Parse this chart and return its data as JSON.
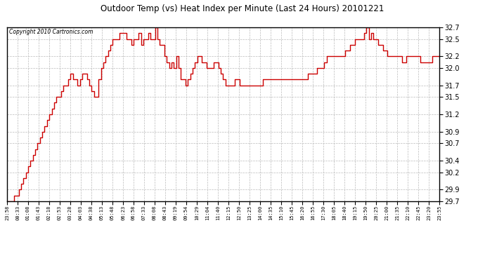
{
  "title": "Outdoor Temp (vs) Heat Index per Minute (Last 24 Hours) 20101221",
  "copyright": "Copyright 2010 Cartronics.com",
  "line_color": "#cc0000",
  "background_color": "#ffffff",
  "plot_bg_color": "#ffffff",
  "grid_color": "#bbbbbb",
  "ylim": [
    29.7,
    32.7
  ],
  "yticks": [
    29.7,
    29.9,
    30.2,
    30.4,
    30.7,
    30.9,
    31.2,
    31.5,
    31.7,
    32.0,
    32.2,
    32.5,
    32.7
  ],
  "xtick_labels": [
    "23:58",
    "00:33",
    "01:08",
    "01:43",
    "02:18",
    "02:53",
    "03:28",
    "04:03",
    "04:38",
    "05:13",
    "05:48",
    "06:23",
    "06:58",
    "07:33",
    "08:08",
    "08:43",
    "09:19",
    "09:54",
    "10:29",
    "11:04",
    "11:40",
    "12:15",
    "12:50",
    "13:25",
    "14:00",
    "14:35",
    "15:10",
    "15:45",
    "16:20",
    "16:55",
    "17:30",
    "18:05",
    "18:40",
    "19:15",
    "19:50",
    "20:25",
    "21:00",
    "21:35",
    "22:10",
    "22:45",
    "23:20",
    "23:55"
  ],
  "data_y": [
    29.7,
    29.7,
    29.7,
    29.8,
    29.8,
    29.9,
    30.0,
    30.1,
    30.2,
    30.3,
    30.4,
    30.5,
    30.6,
    30.7,
    30.8,
    30.9,
    31.0,
    31.1,
    31.2,
    31.3,
    31.4,
    31.5,
    31.5,
    31.6,
    31.7,
    31.7,
    31.8,
    31.9,
    31.8,
    31.8,
    31.7,
    31.8,
    31.9,
    31.9,
    31.8,
    31.7,
    31.6,
    31.5,
    31.5,
    31.8,
    32.0,
    32.1,
    32.2,
    32.3,
    32.4,
    32.5,
    32.5,
    32.5,
    32.6,
    32.6,
    32.6,
    32.5,
    32.5,
    32.4,
    32.5,
    32.5,
    32.6,
    32.4,
    32.5,
    32.5,
    32.6,
    32.5,
    32.5,
    32.7,
    32.5,
    32.4,
    32.4,
    32.2,
    32.1,
    32.0,
    32.1,
    32.0,
    32.2,
    32.0,
    31.8,
    31.8,
    31.7,
    31.8,
    31.9,
    32.0,
    32.1,
    32.2,
    32.2,
    32.1,
    32.1,
    32.0,
    32.0,
    32.0,
    32.1,
    32.1,
    32.0,
    31.9,
    31.8,
    31.7,
    31.7,
    31.7,
    31.7,
    31.8,
    31.8,
    31.7,
    31.7,
    31.7,
    31.7,
    31.7,
    31.7,
    31.7,
    31.7,
    31.7,
    31.7,
    31.8,
    31.8,
    31.8,
    31.8,
    31.8,
    31.8,
    31.8,
    31.8,
    31.8,
    31.8,
    31.8,
    31.8,
    31.8,
    31.8,
    31.8,
    31.8,
    31.8,
    31.8,
    31.8,
    31.9,
    31.9,
    31.9,
    31.9,
    32.0,
    32.0,
    32.0,
    32.1,
    32.2,
    32.2,
    32.2,
    32.2,
    32.2,
    32.2,
    32.2,
    32.2,
    32.3,
    32.3,
    32.4,
    32.4,
    32.5,
    32.5,
    32.5,
    32.5,
    32.6,
    32.7,
    32.5,
    32.6,
    32.5,
    32.5,
    32.4,
    32.4,
    32.3,
    32.3,
    32.2,
    32.2,
    32.2,
    32.2,
    32.2,
    32.2,
    32.1,
    32.1,
    32.2,
    32.2,
    32.2,
    32.2,
    32.2,
    32.2,
    32.1,
    32.1,
    32.1,
    32.1,
    32.1,
    32.2,
    32.2,
    32.2,
    32.2
  ],
  "figsize": [
    6.9,
    3.75
  ],
  "dpi": 100
}
